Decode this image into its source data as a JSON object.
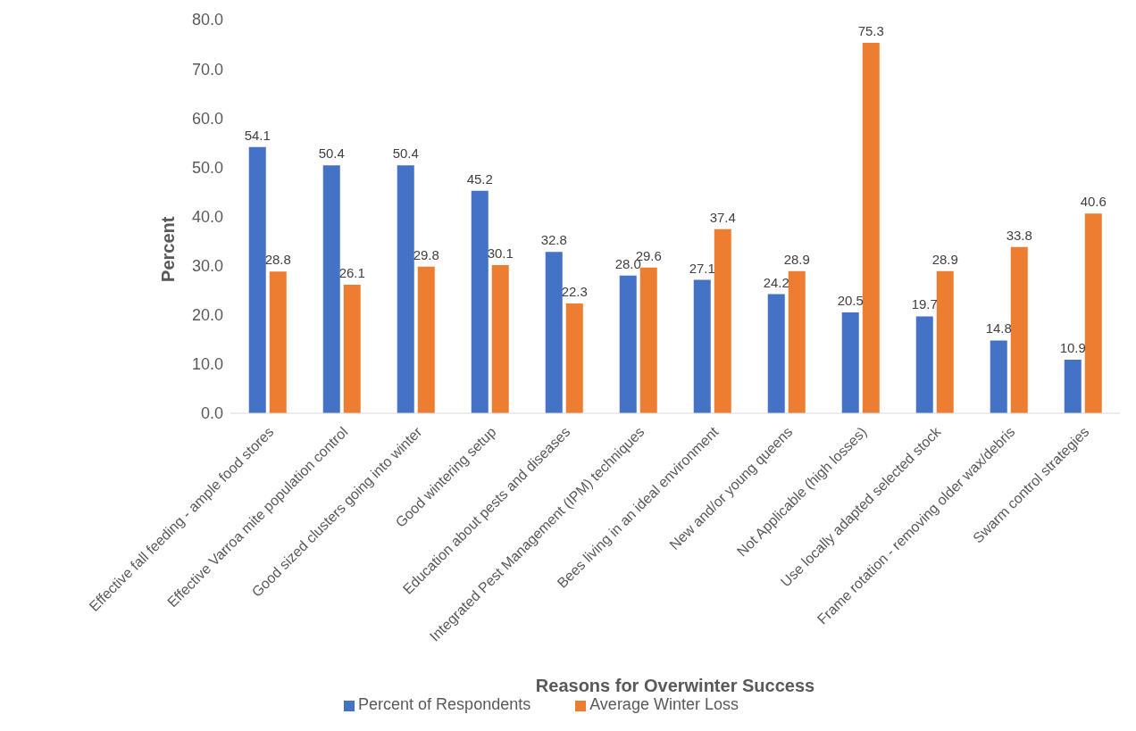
{
  "chart_data": {
    "type": "bar",
    "xlabel": "Reasons for Overwinter Success",
    "ylabel": "Percent",
    "categories": [
      "Effective fall feeding - ample food stores",
      "Effective Varroa mite population control",
      "Good sized clusters going into winter",
      "Good wintering setup",
      "Education about pests and diseases",
      "Integrated Pest Management (IPM) techniques",
      "Bees living in an ideal environment",
      "New and/or young queens",
      "Not Applicable (high losses)",
      "Use locally adapted selected stock",
      "Frame rotation - removing older wax/debris",
      "Swarm control strategies"
    ],
    "series": [
      {
        "name": "Percent of Respondents",
        "color": "#4472c4",
        "values": [
          54.1,
          50.4,
          50.4,
          45.2,
          32.8,
          28.0,
          27.1,
          24.2,
          20.5,
          19.7,
          14.8,
          10.9
        ],
        "value_labels": [
          "54.1",
          "50.4",
          "50.4",
          "45.2",
          "32.8",
          "28.0",
          "27.1",
          "24.2",
          "20.5",
          "19.7",
          "14.8",
          "10.9"
        ]
      },
      {
        "name": "Average Winter Loss",
        "color": "#ed7d31",
        "values": [
          28.8,
          26.1,
          29.8,
          30.1,
          22.3,
          29.6,
          37.4,
          28.9,
          75.3,
          28.9,
          33.8,
          40.6
        ],
        "value_labels": [
          "28.8",
          "26.1",
          "29.8",
          "30.1",
          "22.3",
          "29.6",
          "37.4",
          "28.9",
          "75.3",
          "28.9",
          "33.8",
          "40.6"
        ]
      }
    ],
    "ylim": [
      0,
      80
    ],
    "yticks": [
      {
        "value": 0,
        "label": "0.0"
      },
      {
        "value": 10,
        "label": "10.0"
      },
      {
        "value": 20,
        "label": "20.0"
      },
      {
        "value": 30,
        "label": "30.0"
      },
      {
        "value": 40,
        "label": "40.0"
      },
      {
        "value": 50,
        "label": "50.0"
      },
      {
        "value": 60,
        "label": "60.0"
      },
      {
        "value": 70,
        "label": "70.0"
      },
      {
        "value": 80,
        "label": "80.0"
      }
    ],
    "legend": "bottom"
  }
}
